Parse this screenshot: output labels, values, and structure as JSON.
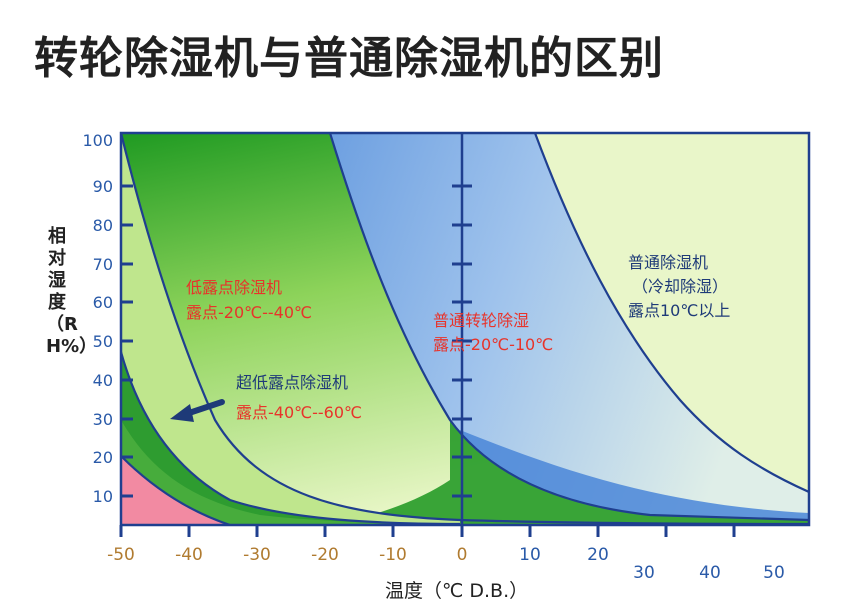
{
  "title": "转轮除湿机与普通除湿机的区别",
  "axes": {
    "y_label": "相对湿度（RH%）",
    "x_label": "温度（℃ D.B.）",
    "y_ticks": [
      "100",
      "90",
      "80",
      "70",
      "60",
      "50",
      "40",
      "30",
      "20",
      "10"
    ],
    "x_ticks_left": [
      "-50",
      "-40",
      "-30",
      "-20",
      "-10",
      "0"
    ],
    "x_ticks_right": [
      "10",
      "20"
    ],
    "x_ticks_lower": [
      "30",
      "40",
      "50"
    ]
  },
  "regions": {
    "low_dew": {
      "name": "低露点除湿机",
      "range": "露点-20℃--40℃"
    },
    "ultra_low_dew": {
      "name": "超低露点除湿机",
      "range": "露点-40℃--60℃"
    },
    "desiccant": {
      "name": "普通转轮除湿",
      "range": "露点-20℃-10℃"
    },
    "ordinary": {
      "name": "普通除湿机",
      "sub": "（冷却除湿）",
      "range": "露点10℃以上"
    }
  },
  "colors": {
    "frame": "#1f3f8f",
    "label_red": "#e8332a",
    "label_blue": "#1e3a78",
    "axis_orange": "#b07b30",
    "axis_blue": "#2a5aa8",
    "pale_green": "#e8f5c8",
    "light_green": "#bde68a",
    "green": "#2a9e2a",
    "blue": "#4a86d8",
    "pink": "#f08aa0"
  }
}
